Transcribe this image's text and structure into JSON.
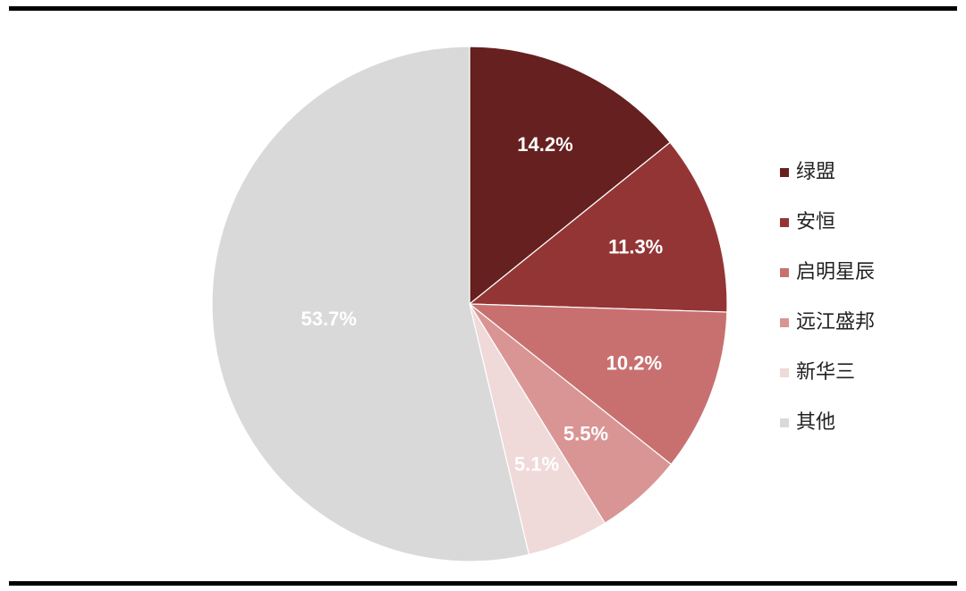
{
  "chart_data": {
    "type": "pie",
    "categories": [
      "绿盟",
      "安恒",
      "启明星辰",
      "远江盛邦",
      "新华三",
      "其他"
    ],
    "values": [
      14.2,
      11.3,
      10.2,
      5.5,
      5.1,
      53.7
    ],
    "value_labels": [
      "14.2%",
      "11.3%",
      "10.2%",
      "5.5%",
      "5.1%",
      "53.7%"
    ],
    "colors": [
      "#65201f",
      "#943535",
      "#c87070",
      "#d99594",
      "#f0d9d9",
      "#d9d9d9"
    ],
    "legend": "right"
  }
}
